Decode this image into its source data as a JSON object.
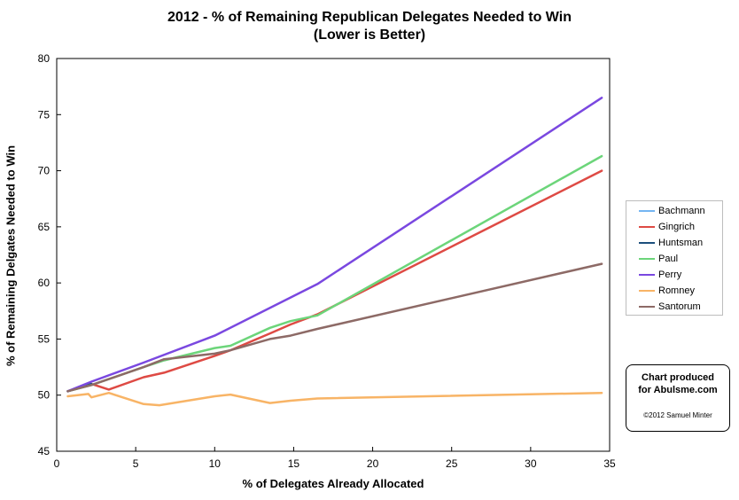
{
  "chart_data": {
    "type": "line",
    "title": "2012 - % of Remaining Republican Delegates Needed to Win",
    "subtitle": "(Lower is Better)",
    "xlabel": "% of Delegates Already Allocated",
    "ylabel": "% of Remaining Delgates Needed to Win",
    "xlim": [
      0,
      35
    ],
    "ylim": [
      45,
      80
    ],
    "xticks": [
      0,
      5,
      10,
      15,
      20,
      25,
      30,
      35
    ],
    "yticks": [
      45,
      50,
      55,
      60,
      65,
      70,
      75,
      80
    ],
    "grid": false,
    "legend_placement": "right",
    "series": [
      {
        "name": "Bachmann",
        "color": "#74b5f2",
        "points": [
          [
            0.7,
            50.35
          ],
          [
            2.2,
            51.0
          ]
        ]
      },
      {
        "name": "Gingrich",
        "color": "#de4a44",
        "points": [
          [
            0.7,
            50.35
          ],
          [
            2.2,
            51.0
          ],
          [
            3.3,
            50.5
          ],
          [
            5.5,
            51.6
          ],
          [
            6.8,
            52.0
          ],
          [
            10.0,
            53.5
          ],
          [
            11.0,
            54.0
          ],
          [
            13.5,
            55.5
          ],
          [
            14.8,
            56.3
          ],
          [
            16.5,
            57.2
          ],
          [
            34.5,
            70.0
          ]
        ]
      },
      {
        "name": "Huntsman",
        "color": "#1c4f7c",
        "points": [
          [
            0.7,
            50.35
          ],
          [
            2.2,
            51.0
          ]
        ]
      },
      {
        "name": "Paul",
        "color": "#6cd57a",
        "points": [
          [
            0.7,
            50.35
          ],
          [
            2.2,
            50.9
          ],
          [
            5.5,
            52.5
          ],
          [
            6.8,
            53.1
          ],
          [
            10.0,
            54.2
          ],
          [
            11.0,
            54.4
          ],
          [
            13.5,
            56.0
          ],
          [
            14.8,
            56.6
          ],
          [
            16.5,
            57.1
          ],
          [
            34.5,
            71.3
          ]
        ]
      },
      {
        "name": "Perry",
        "color": "#7a48e0",
        "points": [
          [
            0.7,
            50.35
          ],
          [
            2.2,
            51.2
          ],
          [
            5.5,
            52.9
          ],
          [
            10.0,
            55.3
          ],
          [
            16.5,
            59.9
          ],
          [
            34.5,
            76.5
          ]
        ]
      },
      {
        "name": "Romney",
        "color": "#f8b466",
        "points": [
          [
            0.7,
            49.9
          ],
          [
            2.0,
            50.1
          ],
          [
            2.2,
            49.8
          ],
          [
            3.3,
            50.2
          ],
          [
            5.5,
            49.2
          ],
          [
            6.5,
            49.1
          ],
          [
            10.0,
            49.9
          ],
          [
            11.0,
            50.05
          ],
          [
            13.5,
            49.3
          ],
          [
            14.8,
            49.5
          ],
          [
            16.5,
            49.7
          ],
          [
            34.5,
            50.2
          ]
        ]
      },
      {
        "name": "Santorum",
        "color": "#8d6a66",
        "points": [
          [
            0.7,
            50.35
          ],
          [
            2.2,
            50.9
          ],
          [
            5.5,
            52.5
          ],
          [
            6.8,
            53.2
          ],
          [
            10.0,
            53.7
          ],
          [
            11.0,
            54.0
          ],
          [
            13.5,
            55.0
          ],
          [
            14.8,
            55.3
          ],
          [
            16.5,
            55.9
          ],
          [
            34.5,
            61.7
          ]
        ]
      }
    ]
  },
  "credit": {
    "line1": "Chart produced",
    "line2": "for Abulsme.com",
    "line3": "©2012 Samuel Minter"
  }
}
